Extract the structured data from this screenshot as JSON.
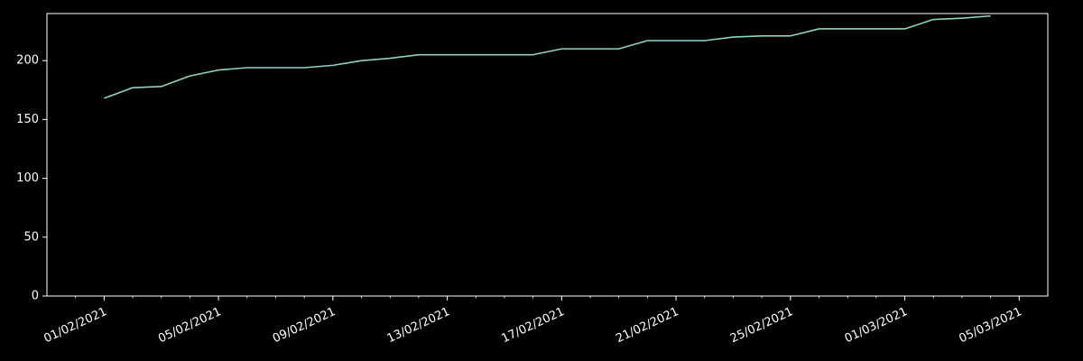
{
  "theme": {
    "background": "#000000",
    "axis_color": "#ffffff",
    "line_color": "#8dd3c7"
  },
  "chart_data": {
    "type": "line",
    "title": "",
    "xlabel": "",
    "ylabel": "",
    "x_format": "DD/MM/YYYY",
    "xlim": [
      "2021-01-30",
      "2021-03-06"
    ],
    "ylim": [
      0,
      240
    ],
    "x_ticks": [
      "2021-02-01",
      "2021-02-05",
      "2021-02-09",
      "2021-02-13",
      "2021-02-17",
      "2021-02-21",
      "2021-02-25",
      "2021-03-01",
      "2021-03-05"
    ],
    "x_tick_labels": [
      "01/02/2021",
      "05/02/2021",
      "09/02/2021",
      "13/02/2021",
      "17/02/2021",
      "21/02/2021",
      "25/02/2021",
      "01/03/2021",
      "05/03/2021"
    ],
    "y_ticks": [
      0,
      50,
      100,
      150,
      200
    ],
    "y_tick_labels": [
      "0",
      "50",
      "100",
      "150",
      "200"
    ],
    "grid": false,
    "legend": "none",
    "series": [
      {
        "x": [
          "2021-02-01",
          "2021-02-02",
          "2021-02-03",
          "2021-02-04",
          "2021-02-05",
          "2021-02-06",
          "2021-02-07",
          "2021-02-08",
          "2021-02-09",
          "2021-02-10",
          "2021-02-11",
          "2021-02-12",
          "2021-02-13",
          "2021-02-14",
          "2021-02-15",
          "2021-02-16",
          "2021-02-17",
          "2021-02-18",
          "2021-02-19",
          "2021-02-20",
          "2021-02-21",
          "2021-02-22",
          "2021-02-23",
          "2021-02-24",
          "2021-02-25",
          "2021-02-26",
          "2021-02-27",
          "2021-02-28",
          "2021-03-01",
          "2021-03-02",
          "2021-03-03",
          "2021-03-04"
        ],
        "values": [
          168,
          177,
          178,
          187,
          192,
          194,
          194,
          194,
          196,
          200,
          202,
          205,
          205,
          205,
          205,
          205,
          210,
          210,
          210,
          217,
          217,
          217,
          220,
          221,
          221,
          227,
          227,
          227,
          227,
          235,
          236,
          238
        ]
      }
    ]
  }
}
